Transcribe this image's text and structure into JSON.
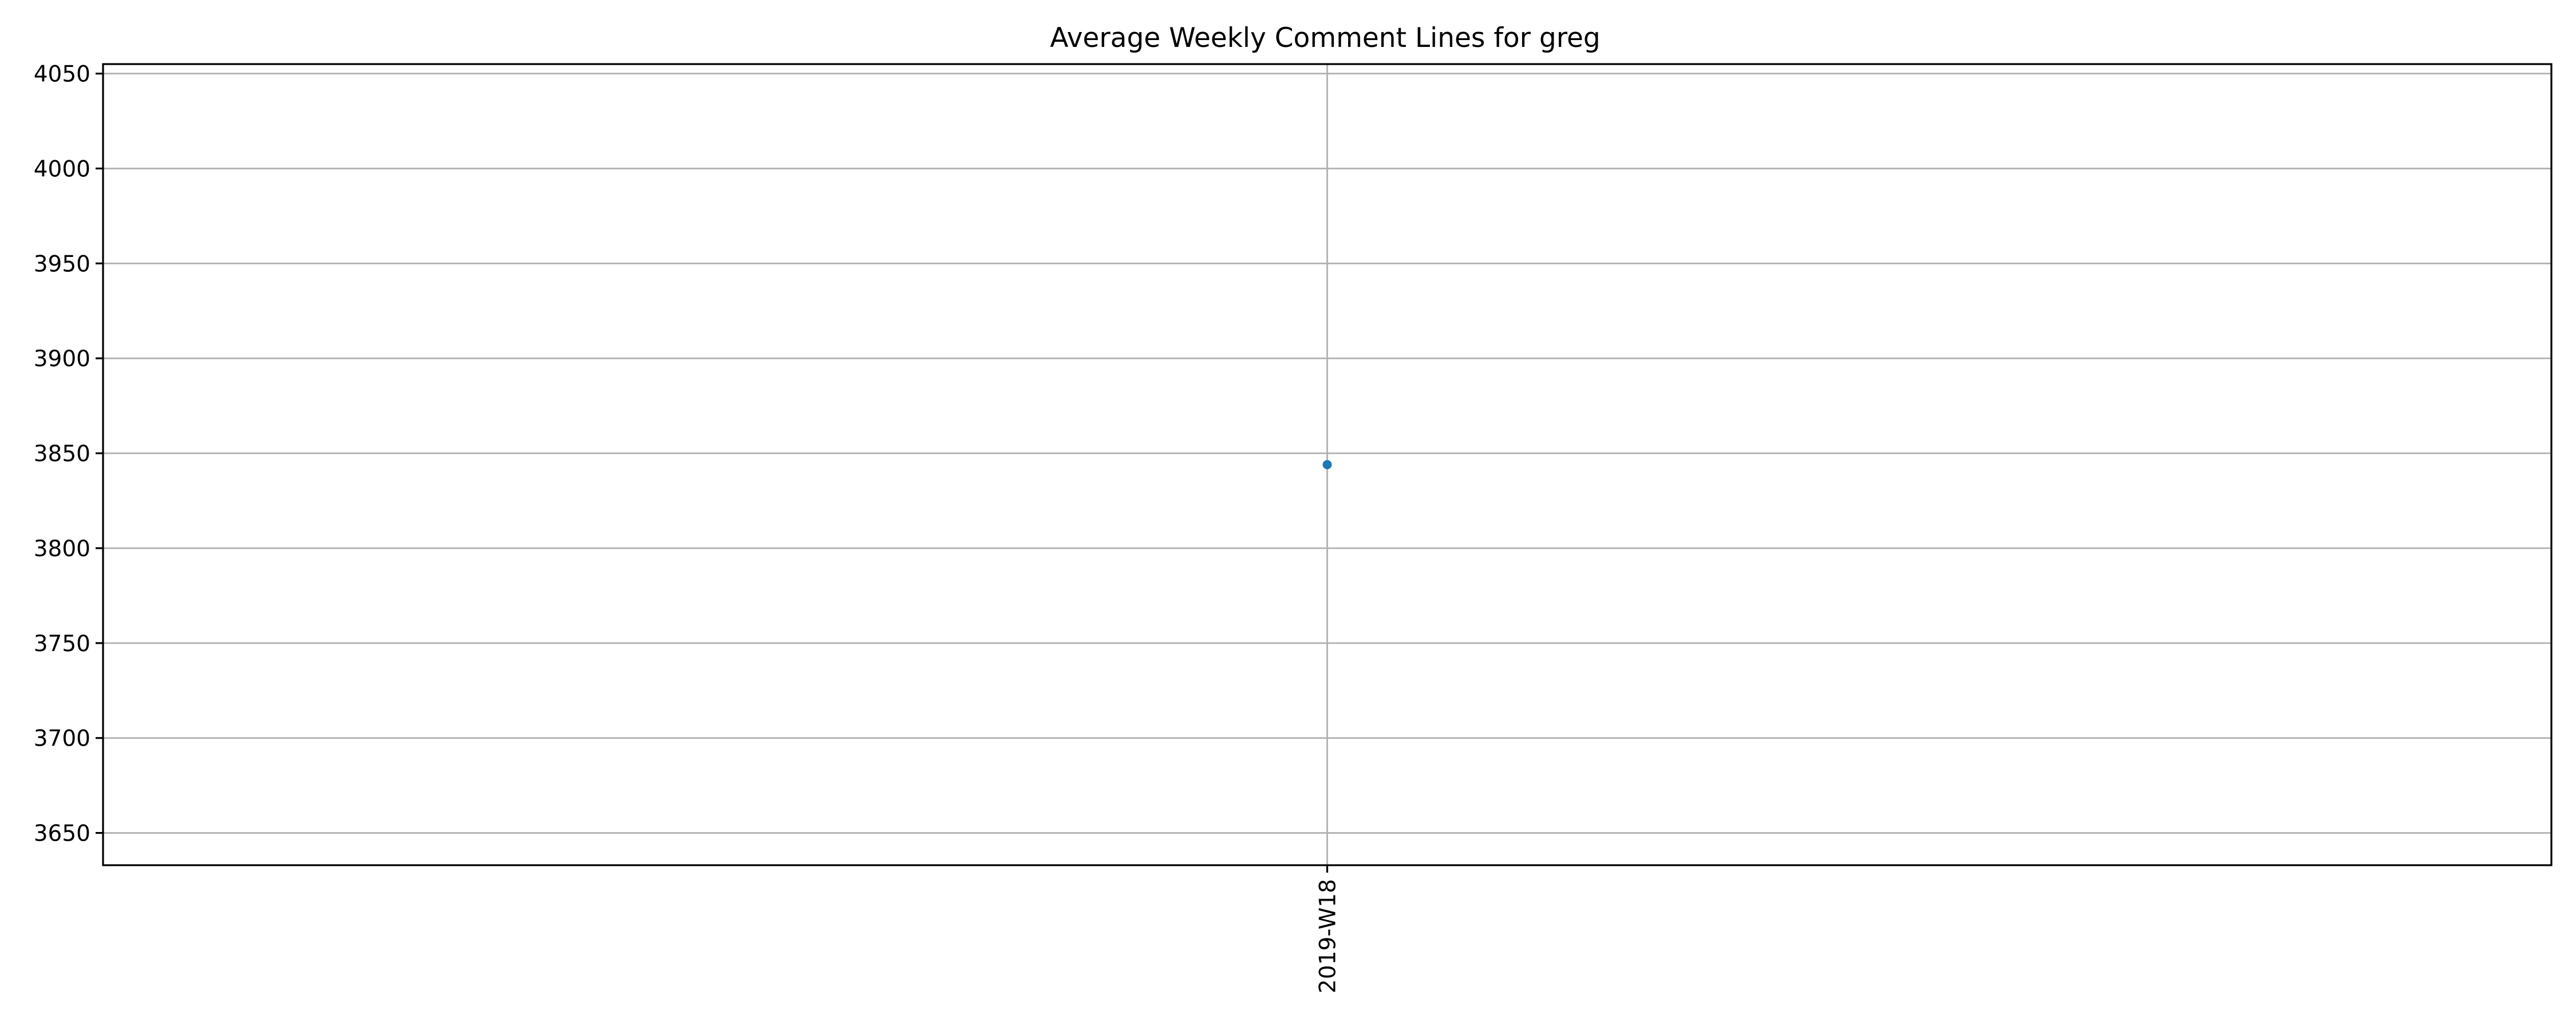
{
  "chart_data": {
    "type": "line",
    "title": "Average Weekly Comment Lines for greg",
    "xlabel": "",
    "ylabel": "",
    "categories": [
      "2019-W18"
    ],
    "series": [
      {
        "values": [
          3844
        ]
      }
    ],
    "yticks": [
      3650,
      3700,
      3750,
      3800,
      3850,
      3900,
      3950,
      4000,
      4050
    ],
    "ylim": [
      3633,
      4055
    ],
    "grid": true,
    "colors": {
      "series": "#1f77b4",
      "grid": "#b0b0b0",
      "axes": "#000000"
    }
  }
}
